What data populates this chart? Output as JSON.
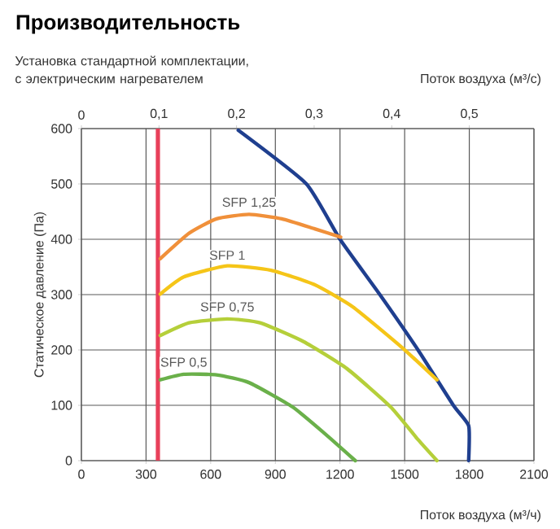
{
  "chart_data": {
    "type": "line",
    "title": "Производительность",
    "subtitle": "Установка стандартной комплектации, с электрическим нагревателем",
    "xlabel": "Поток воздуха (м³/ч)",
    "ylabel": "Статическое давление (Па)",
    "x2label": "Поток воздуха (м³/с)",
    "xlim": [
      0,
      2100
    ],
    "xticks": [
      0,
      300,
      600,
      900,
      1200,
      1500,
      1800,
      2100
    ],
    "ylim": [
      0,
      600
    ],
    "yticks": [
      0,
      100,
      200,
      300,
      400,
      500,
      600
    ],
    "x2lim": [
      0,
      0.58333
    ],
    "x2ticks": [
      0,
      {
        "value": 0.1,
        "label": "0,1"
      },
      {
        "value": 0.2,
        "label": "0,2"
      },
      {
        "value": 0.3,
        "label": "0,3"
      },
      {
        "value": 0.4,
        "label": "0,4"
      },
      {
        "value": 0.5,
        "label": "0,5"
      }
    ],
    "grid": true,
    "marker": "none",
    "ref_lines": [
      {
        "axis": "x",
        "value": 355,
        "color": "#e8405a"
      }
    ],
    "series": [
      {
        "color": "#1f3f8f",
        "x": [
          728,
          1044,
          1200,
          1385,
          1562,
          1726,
          1797,
          1797
        ],
        "values": [
          597,
          500,
          400,
          300,
          200,
          100,
          63,
          0
        ]
      },
      {
        "name": "SFP 1,25",
        "color": "#f0903a",
        "x": [
          366,
          500,
          627,
          778,
          930,
          1082,
          1203
        ],
        "values": [
          365,
          411,
          437,
          445,
          437,
          419,
          404
        ]
      },
      {
        "name": "SFP 1",
        "color": "#f5c518",
        "x": [
          366,
          475,
          677,
          880,
          1082,
          1259,
          1486,
          1650
        ],
        "values": [
          301,
          332,
          352,
          344,
          318,
          278,
          205,
          146
        ]
      },
      {
        "name": "SFP 0,75",
        "color": "#b5cf3a",
        "x": [
          366,
          500,
          677,
          829,
          1031,
          1233,
          1435,
          1562,
          1650
        ],
        "values": [
          226,
          249,
          256,
          249,
          215,
          166,
          97,
          38,
          0
        ]
      },
      {
        "name": "SFP 0,5",
        "color": "#6ab04a",
        "x": [
          366,
          475,
          627,
          778,
          980,
          1132,
          1271
        ],
        "values": [
          146,
          156,
          155,
          141,
          97,
          48,
          0
        ]
      }
    ]
  }
}
